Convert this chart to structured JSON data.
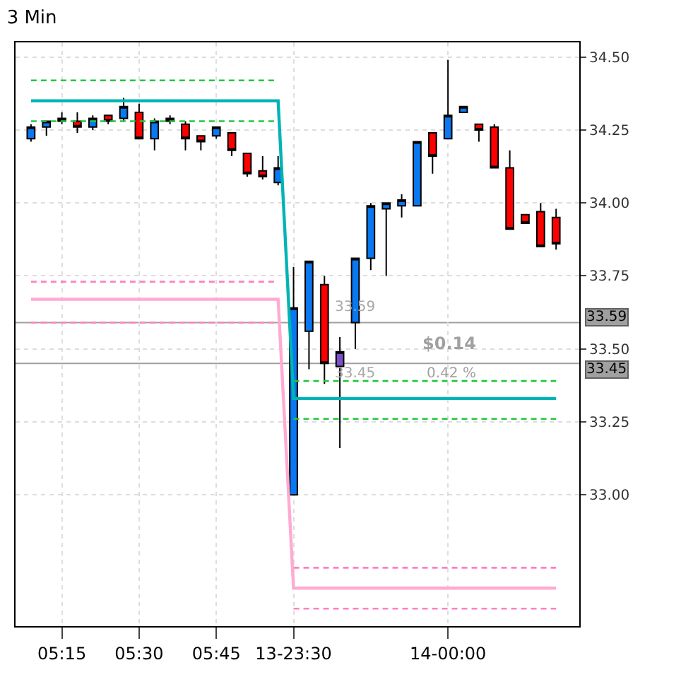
{
  "chart_data": {
    "type": "candlestick",
    "title": "3 Min",
    "categories": [
      null,
      null,
      "05:15",
      null,
      null,
      null,
      null,
      "05:30",
      null,
      null,
      null,
      null,
      "05:45",
      null,
      null,
      null,
      null,
      "13-23:30",
      null,
      null,
      null,
      null,
      null,
      null,
      null,
      null,
      null,
      "14-00:00",
      null,
      null,
      null,
      null,
      null,
      null,
      null
    ],
    "ohlc": [
      [
        34.22,
        34.27,
        34.21,
        34.26
      ],
      [
        34.26,
        34.28,
        34.23,
        34.28
      ],
      [
        34.28,
        34.31,
        34.27,
        34.29
      ],
      [
        34.28,
        34.31,
        34.24,
        34.26
      ],
      [
        34.26,
        34.3,
        34.25,
        34.29
      ],
      [
        34.3,
        34.3,
        34.27,
        34.28
      ],
      [
        34.29,
        34.36,
        34.28,
        34.33
      ],
      [
        34.31,
        34.34,
        34.22,
        34.22
      ],
      [
        34.22,
        34.29,
        34.18,
        34.28
      ],
      [
        34.28,
        34.3,
        34.27,
        34.29
      ],
      [
        34.27,
        34.28,
        34.18,
        34.22
      ],
      [
        34.23,
        34.23,
        34.18,
        34.21
      ],
      [
        34.23,
        34.26,
        34.22,
        34.26
      ],
      [
        34.24,
        34.24,
        34.16,
        34.18
      ],
      [
        34.17,
        34.17,
        34.09,
        34.1
      ],
      [
        34.11,
        34.16,
        34.08,
        34.09
      ],
      [
        34.07,
        34.16,
        34.06,
        34.12
      ],
      [
        33.0,
        33.78,
        33.0,
        33.64
      ],
      [
        33.56,
        33.8,
        33.43,
        33.8
      ],
      [
        33.72,
        33.75,
        33.38,
        33.45
      ],
      [
        33.44,
        33.54,
        33.16,
        33.49
      ],
      [
        33.59,
        33.81,
        33.5,
        33.81
      ],
      [
        33.81,
        34.0,
        33.77,
        33.99
      ],
      [
        33.98,
        34.0,
        33.75,
        34.0
      ],
      [
        33.99,
        34.03,
        33.95,
        34.01
      ],
      [
        33.99,
        34.21,
        33.99,
        34.21
      ],
      [
        34.24,
        34.24,
        34.1,
        34.16
      ],
      [
        34.22,
        34.49,
        34.22,
        34.3
      ],
      [
        34.31,
        34.33,
        34.31,
        34.33
      ],
      [
        34.27,
        34.27,
        34.21,
        34.25
      ],
      [
        34.26,
        34.27,
        34.12,
        34.12
      ],
      [
        34.12,
        34.18,
        33.91,
        33.91
      ],
      [
        33.96,
        33.96,
        33.93,
        33.93
      ],
      [
        33.97,
        34.0,
        33.85,
        33.85
      ],
      [
        33.95,
        33.98,
        33.84,
        33.86
      ]
    ],
    "colors": [
      "#0a78f0",
      "#0a78f0",
      "#0a78f0",
      "#ff0000",
      "#0a78f0",
      "#ff0000",
      "#0a78f0",
      "#ff0000",
      "#0a78f0",
      "#0a78f0",
      "#ff0000",
      "#ff0000",
      "#0a78f0",
      "#ff0000",
      "#ff0000",
      "#ff0000",
      "#0a78f0",
      "#0a78f0",
      "#0a78f0",
      "#ff0000",
      "#7a50c8",
      "#0a78f0",
      "#0a78f0",
      "#0a78f0",
      "#0a78f0",
      "#0a78f0",
      "#ff0000",
      "#0a78f0",
      "#0a78f0",
      "#ff0000",
      "#ff0000",
      "#ff0000",
      "#ff0000",
      "#ff0000",
      "#ff0000"
    ],
    "series": [
      {
        "type": "line",
        "color": "#22c840",
        "line_style": "dashed",
        "values": [
          34.42,
          34.42,
          34.42,
          34.42,
          34.42,
          34.42,
          34.42,
          34.42,
          34.42,
          34.42,
          34.42,
          34.42,
          34.42,
          34.42,
          34.42,
          34.42,
          34.42,
          null,
          null,
          null,
          null,
          null,
          null,
          null,
          null,
          null,
          null,
          null,
          null,
          null,
          null,
          null,
          null,
          null,
          null
        ]
      },
      {
        "type": "line",
        "color": "#22c840",
        "line_style": "dashed",
        "values": [
          34.28,
          34.28,
          34.28,
          34.28,
          34.28,
          34.28,
          34.28,
          34.28,
          34.28,
          34.28,
          34.28,
          34.28,
          34.28,
          34.28,
          34.28,
          34.28,
          34.28,
          null,
          null,
          null,
          null,
          null,
          null,
          null,
          null,
          null,
          null,
          null,
          null,
          null,
          null,
          null,
          null,
          null,
          null
        ]
      },
      {
        "type": "line",
        "color": "#ff80c0",
        "line_style": "dashed",
        "values": [
          33.73,
          33.73,
          33.73,
          33.73,
          33.73,
          33.73,
          33.73,
          33.73,
          33.73,
          33.73,
          33.73,
          33.73,
          33.73,
          33.73,
          33.73,
          33.73,
          33.73,
          null,
          null,
          null,
          null,
          null,
          null,
          null,
          null,
          null,
          null,
          null,
          null,
          null,
          null,
          null,
          null,
          null,
          null
        ]
      },
      {
        "type": "line",
        "color": "#ff80c0",
        "line_style": "dashed",
        "values": [
          33.59,
          33.59,
          33.59,
          33.59,
          33.59,
          33.59,
          33.59,
          33.59,
          33.59,
          33.59,
          33.59,
          33.59,
          33.59,
          33.59,
          33.59,
          33.59,
          33.59,
          null,
          null,
          null,
          null,
          null,
          null,
          null,
          null,
          null,
          null,
          null,
          null,
          null,
          null,
          null,
          null,
          null,
          null
        ]
      },
      {
        "type": "line",
        "color": "#22c840",
        "line_style": "dashed",
        "values": [
          null,
          null,
          null,
          null,
          null,
          null,
          null,
          null,
          null,
          null,
          null,
          null,
          null,
          null,
          null,
          null,
          null,
          33.39,
          33.39,
          33.39,
          33.39,
          33.39,
          33.39,
          33.39,
          33.39,
          33.39,
          33.39,
          33.39,
          33.39,
          33.39,
          33.39,
          33.39,
          33.39,
          33.39,
          33.39
        ]
      },
      {
        "type": "line",
        "color": "#22c840",
        "line_style": "dashed",
        "values": [
          null,
          null,
          null,
          null,
          null,
          null,
          null,
          null,
          null,
          null,
          null,
          null,
          null,
          null,
          null,
          null,
          null,
          33.26,
          33.26,
          33.26,
          33.26,
          33.26,
          33.26,
          33.26,
          33.26,
          33.26,
          33.26,
          33.26,
          33.26,
          33.26,
          33.26,
          33.26,
          33.26,
          33.26,
          33.26
        ]
      },
      {
        "type": "line",
        "color": "#ff80c0",
        "line_style": "dashed",
        "values": [
          null,
          null,
          null,
          null,
          null,
          null,
          null,
          null,
          null,
          null,
          null,
          null,
          null,
          null,
          null,
          null,
          null,
          32.75,
          32.75,
          32.75,
          32.75,
          32.75,
          32.75,
          32.75,
          32.75,
          32.75,
          32.75,
          32.75,
          32.75,
          32.75,
          32.75,
          32.75,
          32.75,
          32.75,
          32.75
        ]
      },
      {
        "type": "line",
        "color": "#ff80c0",
        "line_style": "dashed",
        "values": [
          null,
          null,
          null,
          null,
          null,
          null,
          null,
          null,
          null,
          null,
          null,
          null,
          null,
          null,
          null,
          null,
          null,
          32.61,
          32.61,
          32.61,
          32.61,
          32.61,
          32.61,
          32.61,
          32.61,
          32.61,
          32.61,
          32.61,
          32.61,
          32.61,
          32.61,
          32.61,
          32.61,
          32.61,
          32.61
        ]
      },
      {
        "type": "line",
        "color": "#00b4b4",
        "line_style": "solid",
        "values": [
          34.35,
          34.35,
          34.35,
          34.35,
          34.35,
          34.35,
          34.35,
          34.35,
          34.35,
          34.35,
          34.35,
          34.35,
          34.35,
          34.35,
          34.35,
          34.35,
          34.35,
          33.33,
          33.33,
          33.33,
          33.33,
          33.33,
          33.33,
          33.33,
          33.33,
          33.33,
          33.33,
          33.33,
          33.33,
          33.33,
          33.33,
          33.33,
          33.33,
          33.33,
          33.33
        ]
      },
      {
        "type": "line",
        "color": "#ffaad2",
        "line_style": "solid",
        "values": [
          33.67,
          33.67,
          33.67,
          33.67,
          33.67,
          33.67,
          33.67,
          33.67,
          33.67,
          33.67,
          33.67,
          33.67,
          33.67,
          33.67,
          33.67,
          33.67,
          33.67,
          32.68,
          32.68,
          32.68,
          32.68,
          32.68,
          32.68,
          32.68,
          32.68,
          32.68,
          32.68,
          32.68,
          32.68,
          32.68,
          32.68,
          32.68,
          32.68,
          32.68,
          32.68
        ]
      }
    ],
    "ref_lines": [
      {
        "axis": "y",
        "value": 33.59,
        "label": "33.59",
        "color": "#a0a0a0"
      },
      {
        "axis": "y",
        "value": 33.45,
        "label": "33.45",
        "color": "#a0a0a0"
      }
    ],
    "annotations": [
      {
        "text": "33.59",
        "y": 33.59
      },
      {
        "text": "33.45",
        "y": 33.45
      },
      "$0.14",
      "0.42 %"
    ],
    "ylim": [
      32.55,
      34.55
    ],
    "yticks": [
      {
        "value": 33.0,
        "label": "33.00"
      },
      {
        "value": 33.25,
        "label": "33.25"
      },
      {
        "value": 33.5,
        "label": "33.50"
      },
      {
        "value": 33.75,
        "label": "33.75"
      },
      {
        "value": 34.0,
        "label": "34.00"
      },
      {
        "value": 34.25,
        "label": "34.25"
      },
      {
        "value": 34.5,
        "label": "34.50"
      }
    ],
    "grid": true
  }
}
